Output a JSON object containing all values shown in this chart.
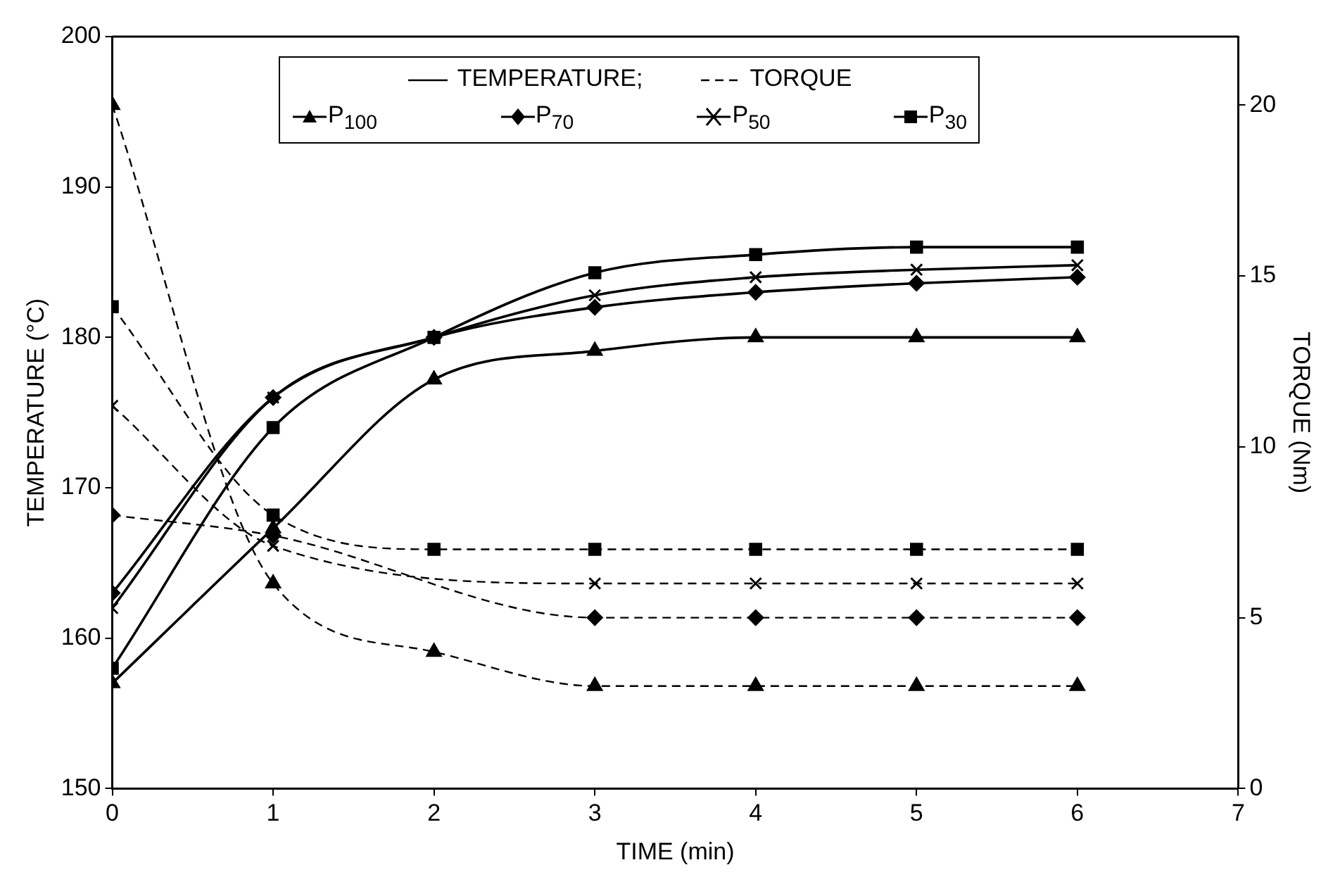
{
  "chart_data": {
    "type": "line",
    "xlabel": "TIME (min)",
    "ylabel": "TEMPERATURE (°C)",
    "y2label": "TORQUE (Nm)",
    "x": [
      0,
      1,
      2,
      3,
      4,
      5,
      6
    ],
    "xlim": [
      0,
      7
    ],
    "xticks": [
      0,
      1,
      2,
      3,
      4,
      5,
      6,
      7
    ],
    "ylim": [
      150,
      200
    ],
    "yticks": [
      150,
      160,
      170,
      180,
      190,
      200
    ],
    "y2lim": [
      0,
      22
    ],
    "y2ticks": [
      0,
      5,
      10,
      15,
      20
    ],
    "grid": false,
    "legend": "top",
    "annotations": [
      "TEMPERATURE;",
      "TORQUE"
    ],
    "series": [
      {
        "name": "P$_{100}$",
        "color": "#000000",
        "marker": "triangle",
        "line_style": "solid",
        "values": [
          157,
          167.3,
          177.2,
          179.1,
          180,
          180,
          180
        ]
      },
      {
        "name": "P$_{70}$",
        "color": "#000000",
        "marker": "diamond",
        "line_style": "solid",
        "values": [
          163,
          176,
          180,
          182,
          183,
          183.6,
          184
        ]
      },
      {
        "name": "P$_{50}$",
        "color": "#000000",
        "marker": "cross",
        "line_style": "solid",
        "values": [
          162,
          176,
          180,
          182.8,
          184,
          184.5,
          184.8
        ]
      },
      {
        "name": "P$_{30}$",
        "color": "#000000",
        "marker": "square",
        "line_style": "solid",
        "values": [
          158,
          174,
          180,
          184.3,
          185.5,
          186,
          186
        ]
      },
      {
        "color": "#000000",
        "marker": "triangle",
        "line_style": "dashed",
        "axis": "y2",
        "values": [
          20,
          6,
          4,
          3,
          3,
          3,
          3
        ]
      },
      {
        "color": "#000000",
        "marker": "diamond",
        "line_style": "dashed",
        "axis": "y2",
        "values": [
          8,
          7.4,
          null,
          5,
          5,
          5,
          5
        ]
      },
      {
        "color": "#000000",
        "marker": "cross",
        "line_style": "dashed",
        "axis": "y2",
        "values": [
          11.2,
          7.1,
          null,
          6,
          6,
          6,
          6
        ]
      },
      {
        "color": "#000000",
        "marker": "square",
        "line_style": "dashed",
        "axis": "y2",
        "values": [
          14.1,
          8,
          7,
          7,
          7,
          7,
          7
        ]
      }
    ]
  }
}
